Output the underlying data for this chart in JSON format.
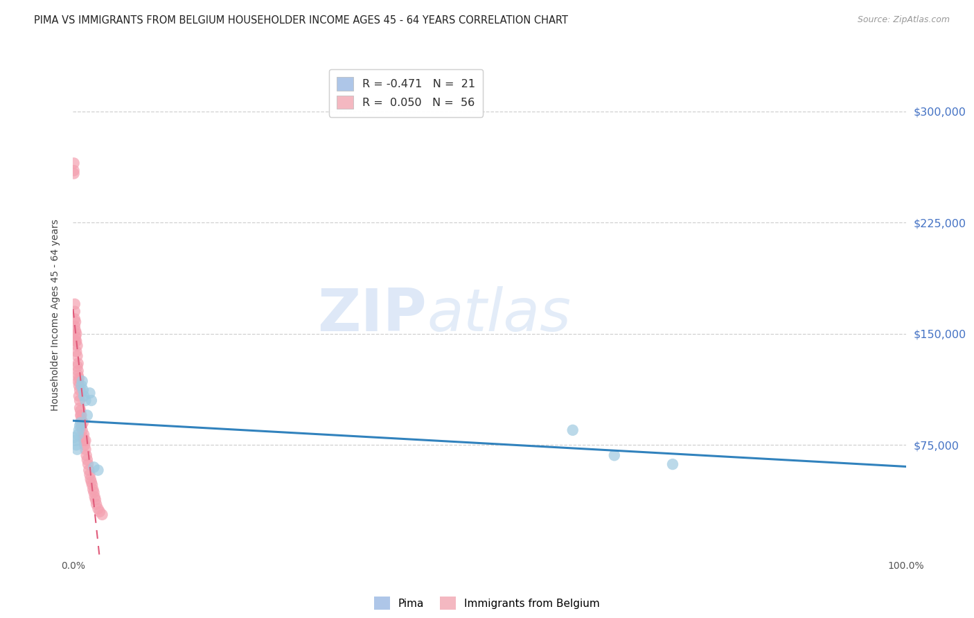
{
  "title": "PIMA VS IMMIGRANTS FROM BELGIUM HOUSEHOLDER INCOME AGES 45 - 64 YEARS CORRELATION CHART",
  "source": "Source: ZipAtlas.com",
  "ylabel": "Householder Income Ages 45 - 64 years",
  "ytick_labels": [
    "$75,000",
    "$150,000",
    "$225,000",
    "$300,000"
  ],
  "ytick_values": [
    75000,
    150000,
    225000,
    300000
  ],
  "ymin": 0,
  "ymax": 325000,
  "xmin": 0.0,
  "xmax": 1.0,
  "series1_name": "Pima",
  "series2_name": "Immigrants from Belgium",
  "pima_scatter_color": "#9ecae1",
  "pima_scatter_alpha": 0.7,
  "belgium_scatter_color": "#f4a0b0",
  "belgium_scatter_alpha": 0.7,
  "pima_line_color": "#3182bd",
  "belgium_line_color": "#e05a7a",
  "legend1_patch_color": "#aec6e8",
  "legend2_patch_color": "#f4b8c1",
  "grid_color": "#d0d0d0",
  "background_color": "#ffffff",
  "right_axis_color": "#4472c4",
  "pima_x": [
    0.001,
    0.003,
    0.004,
    0.005,
    0.006,
    0.007,
    0.008,
    0.009,
    0.01,
    0.011,
    0.012,
    0.013,
    0.015,
    0.017,
    0.02,
    0.022,
    0.025,
    0.03,
    0.6,
    0.65,
    0.72
  ],
  "pima_y": [
    80000,
    78000,
    75000,
    72000,
    82000,
    85000,
    88000,
    90000,
    115000,
    118000,
    112000,
    108000,
    105000,
    95000,
    110000,
    105000,
    60000,
    58000,
    85000,
    68000,
    62000
  ],
  "belgium_x": [
    0.001,
    0.001,
    0.001,
    0.002,
    0.002,
    0.002,
    0.002,
    0.003,
    0.003,
    0.003,
    0.003,
    0.004,
    0.004,
    0.004,
    0.005,
    0.005,
    0.005,
    0.006,
    0.006,
    0.006,
    0.006,
    0.007,
    0.007,
    0.007,
    0.008,
    0.008,
    0.008,
    0.009,
    0.009,
    0.01,
    0.01,
    0.01,
    0.011,
    0.012,
    0.012,
    0.013,
    0.013,
    0.014,
    0.015,
    0.015,
    0.016,
    0.017,
    0.018,
    0.019,
    0.02,
    0.021,
    0.022,
    0.023,
    0.024,
    0.025,
    0.026,
    0.027,
    0.028,
    0.03,
    0.032,
    0.035
  ],
  "belgium_y": [
    260000,
    265000,
    258000,
    170000,
    165000,
    155000,
    160000,
    148000,
    152000,
    145000,
    158000,
    138000,
    145000,
    150000,
    135000,
    128000,
    142000,
    125000,
    130000,
    118000,
    122000,
    115000,
    120000,
    108000,
    112000,
    105000,
    100000,
    95000,
    98000,
    92000,
    88000,
    95000,
    85000,
    80000,
    90000,
    78000,
    82000,
    75000,
    72000,
    78000,
    68000,
    65000,
    62000,
    58000,
    55000,
    52000,
    50000,
    48000,
    45000,
    43000,
    40000,
    38000,
    35000,
    32000,
    30000,
    28000
  ]
}
